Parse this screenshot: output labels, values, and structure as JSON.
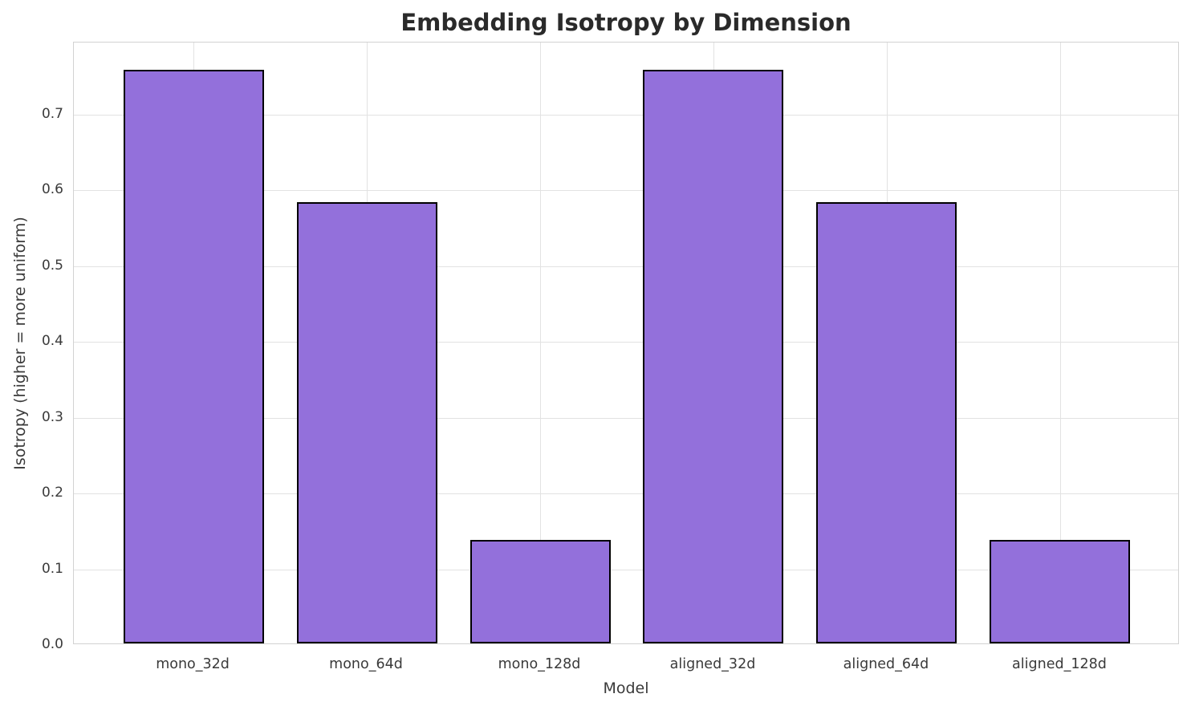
{
  "chart_data": {
    "type": "bar",
    "title": "Embedding Isotropy by Dimension",
    "xlabel": "Model",
    "ylabel": "Isotropy (higher = more uniform)",
    "categories": [
      "mono_32d",
      "mono_64d",
      "mono_128d",
      "aligned_32d",
      "aligned_64d",
      "aligned_128d"
    ],
    "values": [
      0.757,
      0.582,
      0.137,
      0.757,
      0.582,
      0.137
    ],
    "ylim": [
      0,
      0.795
    ],
    "yticks": [
      0.0,
      0.1,
      0.2,
      0.3,
      0.4,
      0.5,
      0.6,
      0.7
    ],
    "ytick_labels": [
      "0.0",
      "0.1",
      "0.2",
      "0.3",
      "0.4",
      "0.5",
      "0.6",
      "0.7"
    ],
    "grid": true,
    "legend_position": "none",
    "colors": {
      "bar_fill": "#9370DB",
      "bar_edge": "#000000",
      "gridline": "#e2e2e2",
      "spine": "#d2d2d2",
      "title_text": "#2a2a2a",
      "tick_text": "#3a3a3a"
    }
  }
}
